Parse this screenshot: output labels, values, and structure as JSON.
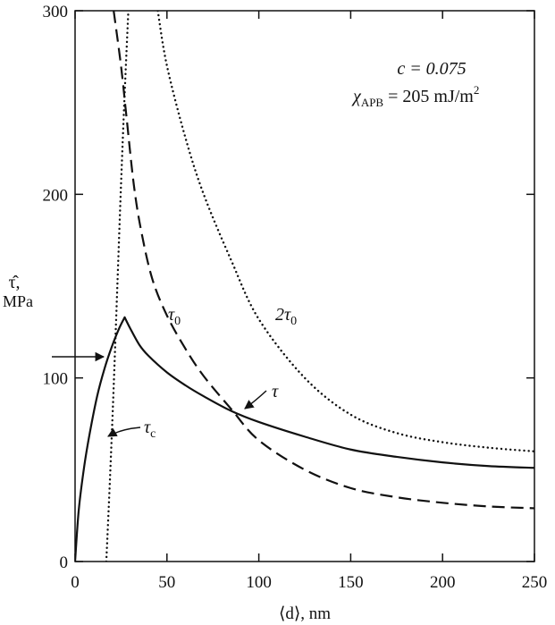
{
  "chart_data": {
    "type": "line",
    "xlabel": "⟨d⟩, nm",
    "ylabel_symbol": "τ̂,",
    "ylabel_unit": "MPa",
    "xlim": [
      0,
      250
    ],
    "ylim": [
      0,
      300
    ],
    "x_ticks": [
      0,
      50,
      100,
      150,
      200,
      250
    ],
    "y_ticks": [
      0,
      100,
      200,
      300
    ],
    "x_tick_labels": [
      "0",
      "50",
      "100",
      "150",
      "200",
      "250"
    ],
    "y_tick_labels": [
      "0",
      "100",
      "200",
      "300"
    ],
    "grid": false,
    "params_line1": "c = 0.075",
    "params_line2_symbol": "χ",
    "params_line2_sub": "APB",
    "params_line2_value": " = 205 mJ/m",
    "params_line2_sup": "2",
    "series": [
      {
        "name": "τ",
        "label_main": "τ",
        "label_sub": "",
        "style": "solid",
        "x": [
          0,
          2,
          5,
          8,
          12,
          16,
          20,
          24,
          27,
          30,
          35,
          40,
          50,
          60,
          70,
          85,
          100,
          125,
          150,
          175,
          200,
          225,
          250
        ],
        "y": [
          0,
          28,
          52,
          70,
          90,
          105,
          117,
          127,
          133,
          127,
          118,
          112,
          103,
          96,
          90,
          82,
          76,
          68,
          61,
          57,
          54,
          52,
          51
        ]
      },
      {
        "name": "τ0",
        "label_main": "τ",
        "label_sub": "0",
        "style": "dashed",
        "x": [
          21,
          25,
          28,
          32,
          36,
          42,
          50,
          60,
          70,
          85,
          100,
          125,
          150,
          175,
          200,
          225,
          250
        ],
        "y": [
          300,
          270,
          242,
          205,
          180,
          154,
          134,
          116,
          101,
          83,
          66,
          50,
          40,
          35,
          32,
          30,
          29
        ]
      },
      {
        "name": "2τ0",
        "label_main": "2τ",
        "label_sub": "0",
        "style": "dotted",
        "x": [
          45,
          50,
          60,
          70,
          85,
          100,
          125,
          150,
          175,
          200,
          225,
          250
        ],
        "y": [
          300,
          270,
          231,
          200,
          164,
          132,
          100,
          80,
          70,
          65,
          62,
          60
        ]
      },
      {
        "name": "τc",
        "label_main": "τ",
        "label_sub": "c",
        "style": "dotted",
        "x": [
          17,
          19,
          21,
          23,
          25,
          27,
          29
        ],
        "y": [
          0,
          45,
          95,
          150,
          205,
          255,
          300
        ]
      }
    ],
    "annotations": [
      {
        "type": "arrow",
        "target_x": 19,
        "target_y": 112,
        "direction": "from-left"
      },
      {
        "type": "curved-arrow",
        "label_ref": "τc",
        "target_x": 18,
        "target_y": 68
      },
      {
        "type": "curved-arrow",
        "label_ref": "τ",
        "target_x": 92,
        "target_y": 80
      }
    ]
  }
}
